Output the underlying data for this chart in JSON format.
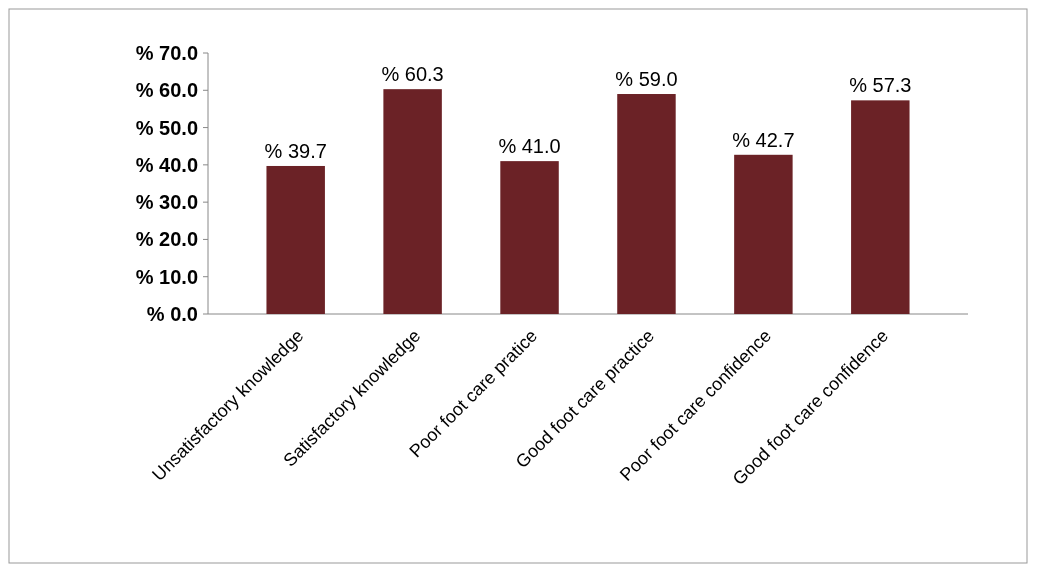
{
  "chart_data": {
    "type": "bar",
    "categories": [
      "Unsatisfactory knowledge",
      "Satisfactory knowledge",
      "Poor foot care pratice",
      "Good foot care practice",
      "Poor foot care confidence",
      "Good foot care confidence"
    ],
    "values": [
      39.7,
      60.3,
      41.0,
      59.0,
      42.7,
      57.3
    ],
    "value_labels": [
      "% 39.7",
      "% 60.3",
      "% 41.0",
      "% 59.0",
      "% 42.7",
      "% 57.3"
    ],
    "color": "#6b2226",
    "ylim": [
      0,
      70
    ],
    "yticks": [
      {
        "value": 0,
        "label": "% 0.0"
      },
      {
        "value": 10,
        "label": "% 10.0"
      },
      {
        "value": 20,
        "label": "% 20.0"
      },
      {
        "value": 30,
        "label": "% 30.0"
      },
      {
        "value": 40,
        "label": "% 40.0"
      },
      {
        "value": 50,
        "label": "% 50.0"
      },
      {
        "value": 60,
        "label": "% 60.0"
      },
      {
        "value": 70,
        "label": "% 70.0"
      }
    ],
    "grid": false
  }
}
